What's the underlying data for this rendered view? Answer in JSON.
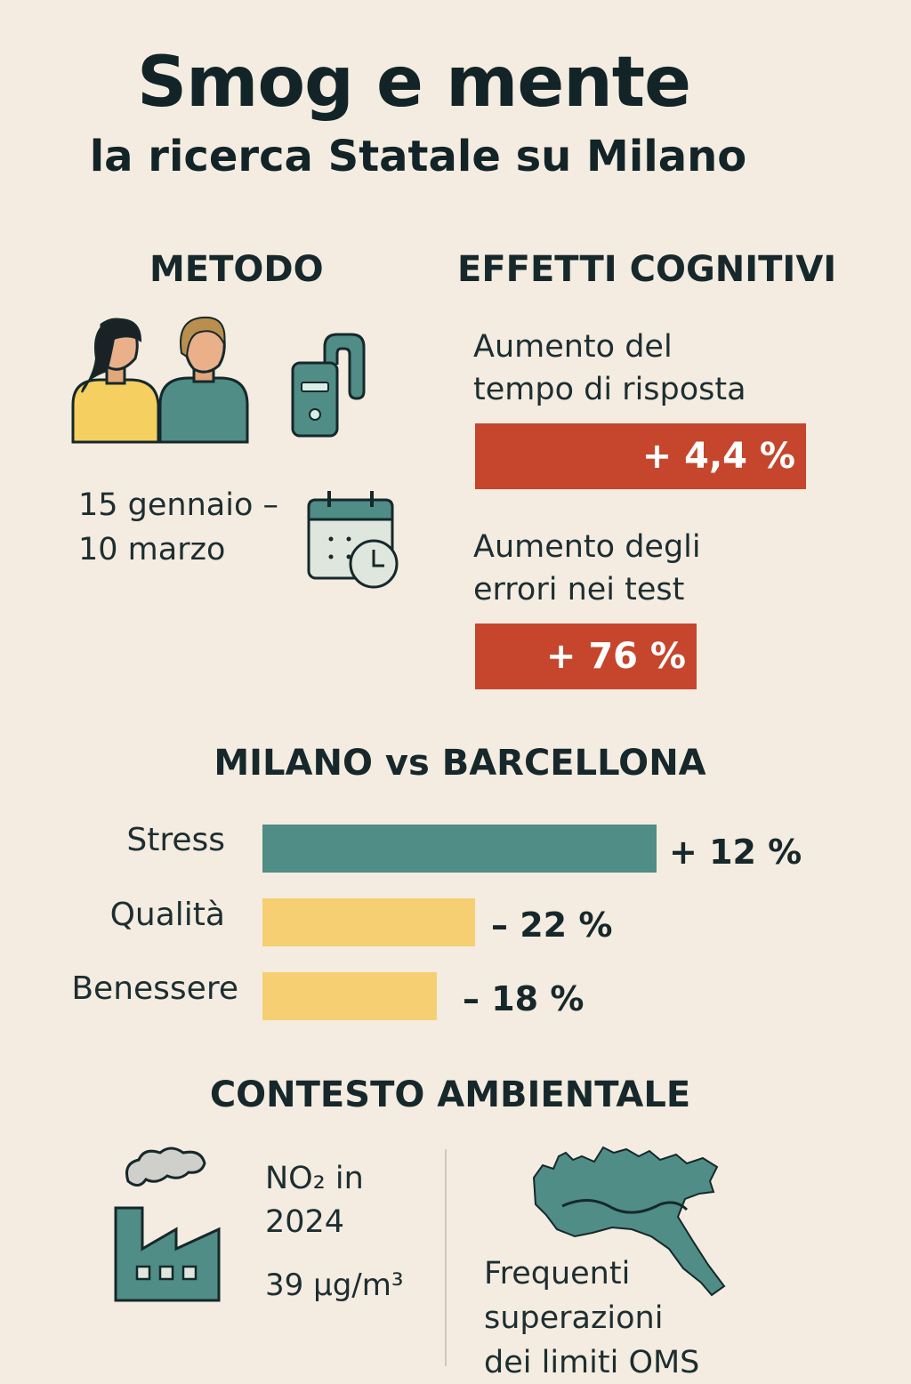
{
  "header": {
    "title": "Smog e mente",
    "subtitle": "la ricerca Statale su Milano"
  },
  "metodo": {
    "heading": "METODO",
    "period_line1": "15 gennaio –",
    "period_line2": "10 marzo",
    "icons": [
      "participants-icon",
      "air-monitor-device-icon",
      "calendar-clock-icon"
    ]
  },
  "effetti": {
    "heading": "EFFETTI COGNITIVI",
    "items": [
      {
        "label_line1": "Aumento del",
        "label_line2": "tempo di risposta",
        "value": "+ 4,4 %",
        "percent": 4.4
      },
      {
        "label_line1": "Aumento degli",
        "label_line2": "errori nei test",
        "value": "+ 76 %",
        "percent": 76
      }
    ],
    "bar_color": "#c5462c"
  },
  "confronto": {
    "heading": "MILANO vs BARCELLONA",
    "rows": [
      {
        "label": "Stress",
        "value": "+ 12 %",
        "percent": 12,
        "color": "#4f8d86"
      },
      {
        "label": "Qualità",
        "value": "– 22 %",
        "percent": -22,
        "color": "#f5cf72"
      },
      {
        "label": "Benessere",
        "value": "– 18 %",
        "percent": -18,
        "color": "#f5cf72"
      }
    ]
  },
  "contesto": {
    "heading": "CONTESTO AMBIENTALE",
    "no2_line1": "NO₂ in",
    "no2_line2": "2024",
    "no2_value": "39 µg/m³",
    "oms_line1": "Frequenti",
    "oms_line2": "superazioni",
    "oms_line3": "dei limiti OMS",
    "icons": [
      "factory-smoke-icon",
      "northern-italy-map-icon"
    ]
  },
  "colors": {
    "background": "#f4ece0",
    "teal": "#4f8d86",
    "red": "#c5462c",
    "yellow": "#f5cf72",
    "ink": "#16282b"
  }
}
